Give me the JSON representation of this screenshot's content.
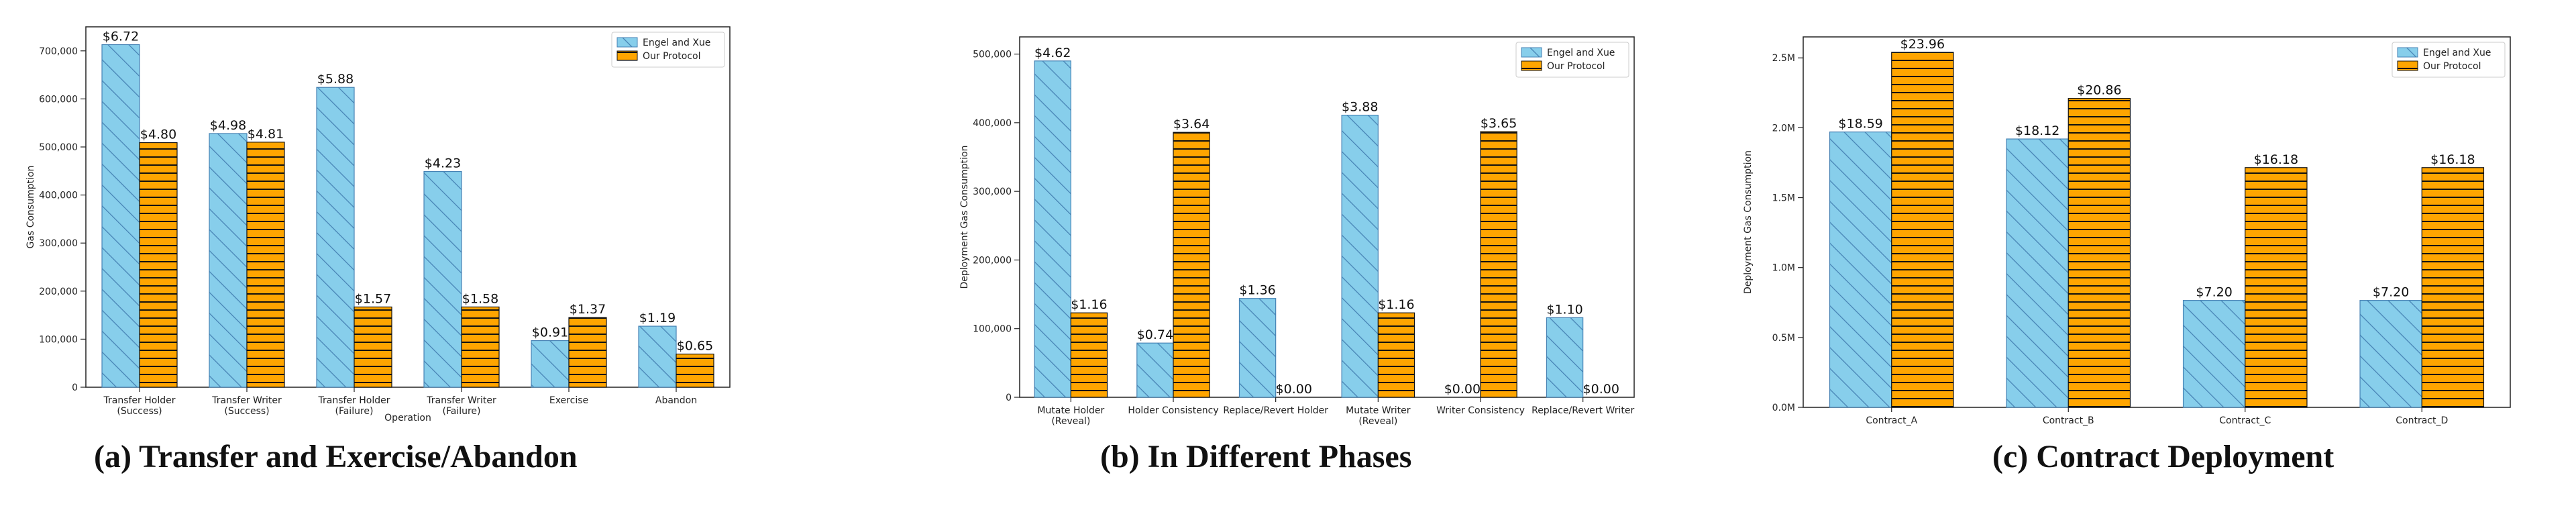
{
  "colors": {
    "engel_fill": "#87CEEB",
    "engel_edge": "#4682B4",
    "ours_fill": "#FFA500",
    "ours_edge": "#111111"
  },
  "captions": {
    "a": "(a) Transfer and Exercise/Abandon",
    "b": "(b) In Different Phases",
    "c": "(c) Contract Deployment"
  },
  "chart_data": [
    {
      "type": "bar",
      "title": "",
      "xlabel": "Operation",
      "ylabel": "Gas Consumption",
      "ylim": [
        0,
        750000
      ],
      "yticks": [
        0,
        100000,
        200000,
        300000,
        400000,
        500000,
        600000,
        700000
      ],
      "ytick_labels": [
        "0",
        "100,000",
        "200,000",
        "300,000",
        "400,000",
        "500,000",
        "600,000",
        "700,000"
      ],
      "categories": [
        [
          "Transfer Holder",
          "(Success)"
        ],
        [
          "Transfer Writer",
          "(Success)"
        ],
        [
          "Transfer Holder",
          "(Failure)"
        ],
        [
          "Transfer Writer",
          "(Failure)"
        ],
        [
          "Exercise"
        ],
        [
          "Abandon"
        ]
      ],
      "legend": [
        "Engel and Xue",
        "Our Protocol"
      ],
      "legend_position": "top-right",
      "series": [
        {
          "name": "Engel and Xue",
          "values": [
            713000,
            528000,
            624000,
            449000,
            97000,
            127000
          ],
          "labels": [
            "$6.72",
            "$4.98",
            "$5.88",
            "$4.23",
            "$0.91",
            "$1.19"
          ]
        },
        {
          "name": "Our Protocol",
          "values": [
            509000,
            510000,
            167000,
            167000,
            145000,
            69000
          ],
          "labels": [
            "$4.80",
            "$4.81",
            "$1.57",
            "$1.58",
            "$1.37",
            "$0.65"
          ]
        }
      ]
    },
    {
      "type": "bar",
      "title": "",
      "xlabel": "",
      "ylabel": "Deployment Gas Consumption",
      "ylim": [
        0,
        525000
      ],
      "yticks": [
        0,
        100000,
        200000,
        300000,
        400000,
        500000
      ],
      "ytick_labels": [
        "0",
        "100,000",
        "200,000",
        "300,000",
        "400,000",
        "500,000"
      ],
      "categories": [
        [
          "Mutate Holder",
          "(Reveal)"
        ],
        [
          "Holder Consistency"
        ],
        [
          "Replace/Revert Holder"
        ],
        [
          "Mutate Writer",
          "(Reveal)"
        ],
        [
          "Writer Consistency"
        ],
        [
          "Replace/Revert Writer"
        ]
      ],
      "legend": [
        "Engel and Xue",
        "Our Protocol"
      ],
      "legend_position": "top-right",
      "series": [
        {
          "name": "Engel and Xue",
          "values": [
            490000,
            79000,
            144000,
            411000,
            0,
            116000
          ],
          "labels": [
            "$4.62",
            "$0.74",
            "$1.36",
            "$3.88",
            "$0.00",
            "$1.10"
          ]
        },
        {
          "name": "Our Protocol",
          "values": [
            123000,
            386000,
            0,
            123000,
            387000,
            0
          ],
          "labels": [
            "$1.16",
            "$3.64",
            "$0.00",
            "$1.16",
            "$3.65",
            "$0.00"
          ]
        }
      ]
    },
    {
      "type": "bar",
      "title": "",
      "xlabel": "",
      "ylabel": "Deployment Gas Consumption",
      "ylim": [
        0,
        2650000
      ],
      "yticks": [
        0,
        500000,
        1000000,
        1500000,
        2000000,
        2500000
      ],
      "ytick_labels": [
        "0.0M",
        "0.5M",
        "1.0M",
        "1.5M",
        "2.0M",
        "2.5M"
      ],
      "categories": [
        [
          "Contract_A"
        ],
        [
          "Contract_B"
        ],
        [
          "Contract_C"
        ],
        [
          "Contract_D"
        ]
      ],
      "legend": [
        "Engel and Xue",
        "Our Protocol"
      ],
      "legend_position": "top-right",
      "series": [
        {
          "name": "Engel and Xue",
          "values": [
            1970000,
            1920000,
            765000,
            765000
          ],
          "labels": [
            "$18.59",
            "$18.12",
            "$7.20",
            "$7.20"
          ]
        },
        {
          "name": "Our Protocol",
          "values": [
            2540000,
            2210000,
            1715000,
            1715000
          ],
          "labels": [
            "$23.96",
            "$20.86",
            "$16.18",
            "$16.18"
          ]
        }
      ]
    }
  ]
}
